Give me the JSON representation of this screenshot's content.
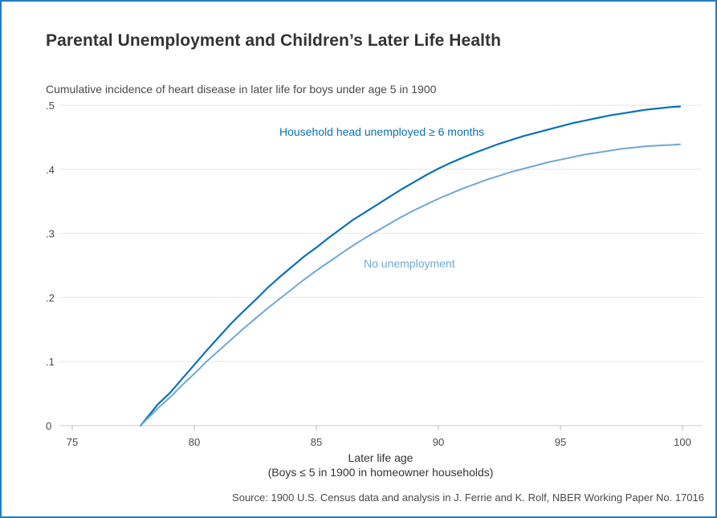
{
  "chart_data": {
    "type": "line",
    "title": "Parental Unemployment and Children’s Later Life Health",
    "subtitle": "Cumulative incidence of heart disease in later life for boys under age 5 in 1900",
    "xlabel": "Later life age",
    "xlabel_note": "(Boys ≤ 5 in 1900 in homeowner households)",
    "ylabel": "",
    "source": "Source: 1900 U.S. Census data and analysis in J. Ferrie and K. Rolf, NBER Working Paper No. 17016",
    "xlim": [
      74.5,
      100.7
    ],
    "ylim": [
      0,
      0.5
    ],
    "x_ticks": [
      75,
      80,
      85,
      90,
      95,
      100
    ],
    "x_tick_labels": [
      "75",
      "80",
      "85",
      "90",
      "95",
      "100"
    ],
    "y_ticks": [
      0,
      0.1,
      0.2,
      0.3,
      0.4,
      0.5
    ],
    "y_tick_labels": [
      "0",
      ".1",
      ".2",
      ".3",
      ".4",
      ".5"
    ],
    "grid": "horizontal",
    "series": [
      {
        "name": "Household head unemployed ≥ 6 months",
        "color": "#0a72b5",
        "x": [
          77.8,
          78.5,
          79,
          79.5,
          80,
          80.5,
          81,
          81.5,
          82,
          82.5,
          83,
          83.5,
          84,
          84.5,
          85,
          85.5,
          86,
          86.5,
          87,
          87.5,
          88,
          88.5,
          89,
          89.5,
          90,
          90.5,
          91,
          91.5,
          92,
          92.5,
          93,
          93.5,
          94,
          94.5,
          95,
          95.5,
          96,
          96.5,
          97,
          97.5,
          98,
          98.5,
          99,
          99.5,
          99.9
        ],
        "values": [
          0,
          0.033,
          0.051,
          0.073,
          0.095,
          0.117,
          0.138,
          0.159,
          0.178,
          0.196,
          0.215,
          0.232,
          0.248,
          0.264,
          0.278,
          0.293,
          0.307,
          0.321,
          0.333,
          0.345,
          0.357,
          0.369,
          0.38,
          0.391,
          0.401,
          0.41,
          0.418,
          0.426,
          0.433,
          0.44,
          0.446,
          0.452,
          0.457,
          0.462,
          0.467,
          0.472,
          0.476,
          0.48,
          0.484,
          0.487,
          0.49,
          0.493,
          0.495,
          0.497,
          0.498
        ]
      },
      {
        "name": "No unemployment",
        "color": "#6fa8d8",
        "x": [
          77.8,
          78.5,
          79,
          79.5,
          80,
          80.5,
          81,
          81.5,
          82,
          82.5,
          83,
          83.5,
          84,
          84.5,
          85,
          85.5,
          86,
          86.5,
          87,
          87.5,
          88,
          88.5,
          89,
          89.5,
          90,
          90.5,
          91,
          91.5,
          92,
          92.5,
          93,
          93.5,
          94,
          94.5,
          95,
          95.5,
          96,
          96.5,
          97,
          97.5,
          98,
          98.5,
          99,
          99.5,
          99.9
        ],
        "values": [
          0,
          0.027,
          0.044,
          0.063,
          0.081,
          0.1,
          0.117,
          0.134,
          0.151,
          0.167,
          0.183,
          0.198,
          0.213,
          0.228,
          0.242,
          0.255,
          0.268,
          0.281,
          0.293,
          0.304,
          0.315,
          0.326,
          0.336,
          0.345,
          0.354,
          0.362,
          0.37,
          0.377,
          0.384,
          0.39,
          0.396,
          0.401,
          0.406,
          0.411,
          0.415,
          0.419,
          0.423,
          0.426,
          0.429,
          0.432,
          0.434,
          0.436,
          0.437,
          0.438,
          0.439
        ]
      }
    ]
  }
}
